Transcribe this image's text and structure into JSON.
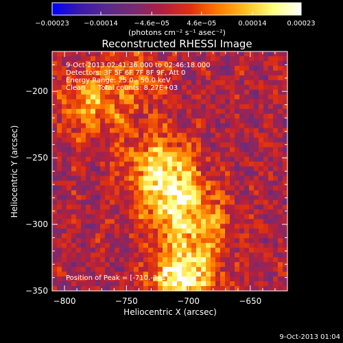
{
  "chart_data": {
    "type": "heatmap",
    "title": "Reconstructed RHESSI Image",
    "xlabel": "Heliocentric X (arcsec)",
    "ylabel": "Heliocentric Y (arcsec)",
    "xlim": [
      -810,
      -620
    ],
    "ylim": [
      -350,
      -170
    ],
    "xticks": [
      -800,
      -750,
      -700,
      -650
    ],
    "xtick_labels": [
      "−800",
      "−750",
      "−700",
      "−650"
    ],
    "yticks": [
      -350,
      -300,
      -250,
      -200
    ],
    "ytick_labels": [
      "−350",
      "−300",
      "−250",
      "−200"
    ],
    "colorbar": {
      "range": [
        -0.00023,
        0.00023
      ],
      "ticks": [
        -0.00023,
        -0.00014,
        -4.6e-05,
        4.6e-05,
        0.00014,
        0.00023
      ],
      "tick_labels": [
        "−0.00023",
        "−0.00014",
        "−4.6e−05",
        "4.6e−05",
        "0.00014",
        "0.00023"
      ],
      "unit_label": "(photons cm⁻² s⁻¹ asec⁻²)",
      "colormap": [
        "#0000ff",
        "#3a1aa8",
        "#5a2a8a",
        "#7a2a70",
        "#b02040",
        "#e03010",
        "#ff7a00",
        "#ffc020",
        "#ffff80",
        "#ffffff"
      ]
    },
    "annotations": {
      "time_range": "9-Oct-2013 02:41:36.000 to 02:46:18.000",
      "detectors": "Detectors: 3F 5F 6F 7F 8F 9F, Att 0",
      "energy": "Energy Range: 25.0 - 50.0 keV",
      "method": "Clean",
      "counts": "Total counts: 8.27E+03",
      "peak": "Position of Peak = [-710,-341]"
    },
    "sources": [
      {
        "x": -705,
        "y": -340,
        "intensity": 0.00023
      },
      {
        "x": -712,
        "y": -280,
        "intensity": 0.00017
      },
      {
        "x": -725,
        "y": -255,
        "intensity": 0.00014
      },
      {
        "x": -778,
        "y": -210,
        "intensity": 0.00012
      },
      {
        "x": -690,
        "y": -300,
        "intensity": 0.0001
      },
      {
        "x": -745,
        "y": -190,
        "intensity": 8e-05
      }
    ]
  },
  "footer": {
    "timestamp": "9-Oct-2013 01:04"
  }
}
